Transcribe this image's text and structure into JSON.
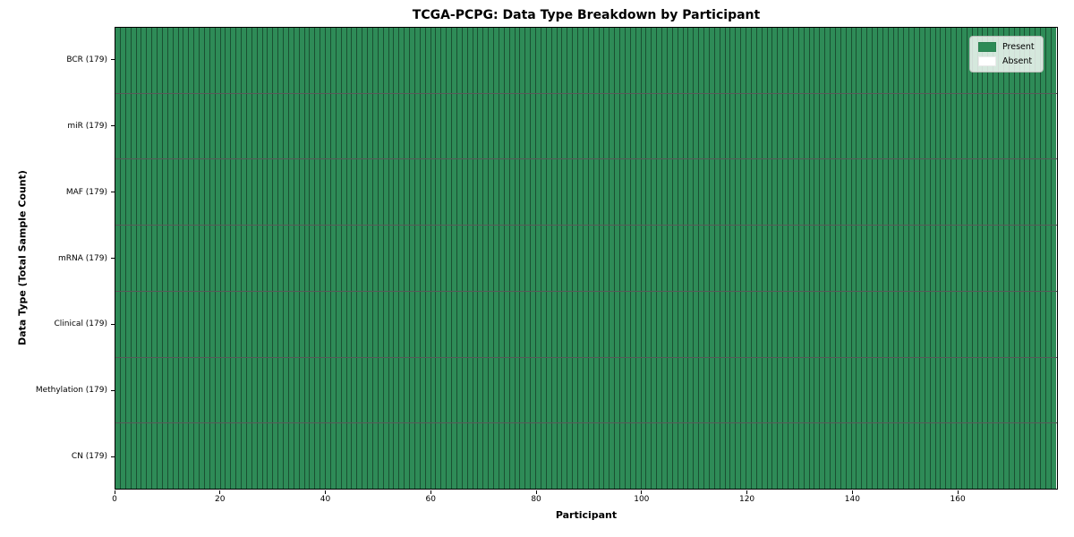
{
  "title": "TCGA-PCPG: Data Type Breakdown by Participant",
  "colors": {
    "present": "#2e8b57",
    "absent": "#ffffff",
    "background": "#ffffff",
    "cell_edge": "rgba(0,0,0,0.42)",
    "row_separator": "rgba(0,0,0,0.65)"
  },
  "chart_data": {
    "type": "heatmap",
    "title": "TCGA-PCPG: Data Type Breakdown by Participant",
    "xlabel": "Participant",
    "ylabel": "Data Type (Total Sample Count)",
    "xlim": [
      0,
      179
    ],
    "x_ticks": [
      0,
      20,
      40,
      60,
      80,
      100,
      120,
      140,
      160
    ],
    "n_participants": 179,
    "grid": false,
    "legend_position": "upper right",
    "rows": [
      {
        "name": "BCR",
        "label": "BCR (179)",
        "total": 179,
        "present_count": 179,
        "absent_count": 0
      },
      {
        "name": "miR",
        "label": "miR (179)",
        "total": 179,
        "present_count": 179,
        "absent_count": 0
      },
      {
        "name": "MAF",
        "label": "MAF (179)",
        "total": 179,
        "present_count": 179,
        "absent_count": 0
      },
      {
        "name": "mRNA",
        "label": "mRNA (179)",
        "total": 179,
        "present_count": 179,
        "absent_count": 0
      },
      {
        "name": "Clinical",
        "label": "Clinical (179)",
        "total": 179,
        "present_count": 179,
        "absent_count": 0
      },
      {
        "name": "Methylation",
        "label": "Methylation (179)",
        "total": 179,
        "present_count": 179,
        "absent_count": 0
      },
      {
        "name": "CN",
        "label": "CN (179)",
        "total": 179,
        "present_count": 179,
        "absent_count": 0
      }
    ],
    "all_present": true,
    "legend": [
      {
        "label": "Present",
        "color": "#2e8b57"
      },
      {
        "label": "Absent",
        "color": "#ffffff"
      }
    ]
  }
}
